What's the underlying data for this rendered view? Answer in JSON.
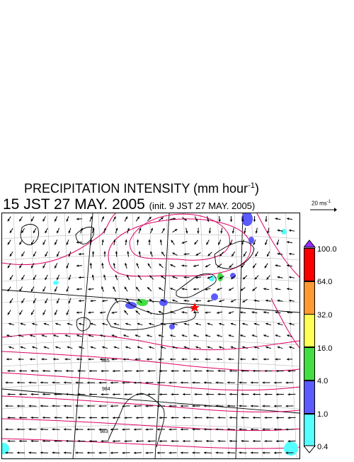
{
  "title": "PRECIPITATION INTENSITY (mm hour",
  "title_sup": "-1",
  "title_close": ")",
  "subtitle": "15 JST 27 MAY. 2005",
  "init_text": "(init. 9 JST 27 MAY. 2005)",
  "ref_vector": {
    "label": "20 ms",
    "sup": "-1"
  },
  "contour_labels": [
    "985",
    "984",
    "983"
  ],
  "legend": {
    "labels": [
      "100.0",
      "64.0",
      "32.0",
      "16.0",
      "4.0",
      "1.0",
      "0.4"
    ],
    "colors": [
      "#9b2bff",
      "#ff0000",
      "#ff9933",
      "#ffff55",
      "#44dd44",
      "#5b5bff",
      "#55ffff",
      "#ffffff"
    ]
  },
  "marker_color": "#ff0000",
  "contour_color": "#dd0066",
  "precip_colors": {
    "light": "#55ffff",
    "mid": "#5b5bff",
    "heavy": "#44dd44"
  }
}
